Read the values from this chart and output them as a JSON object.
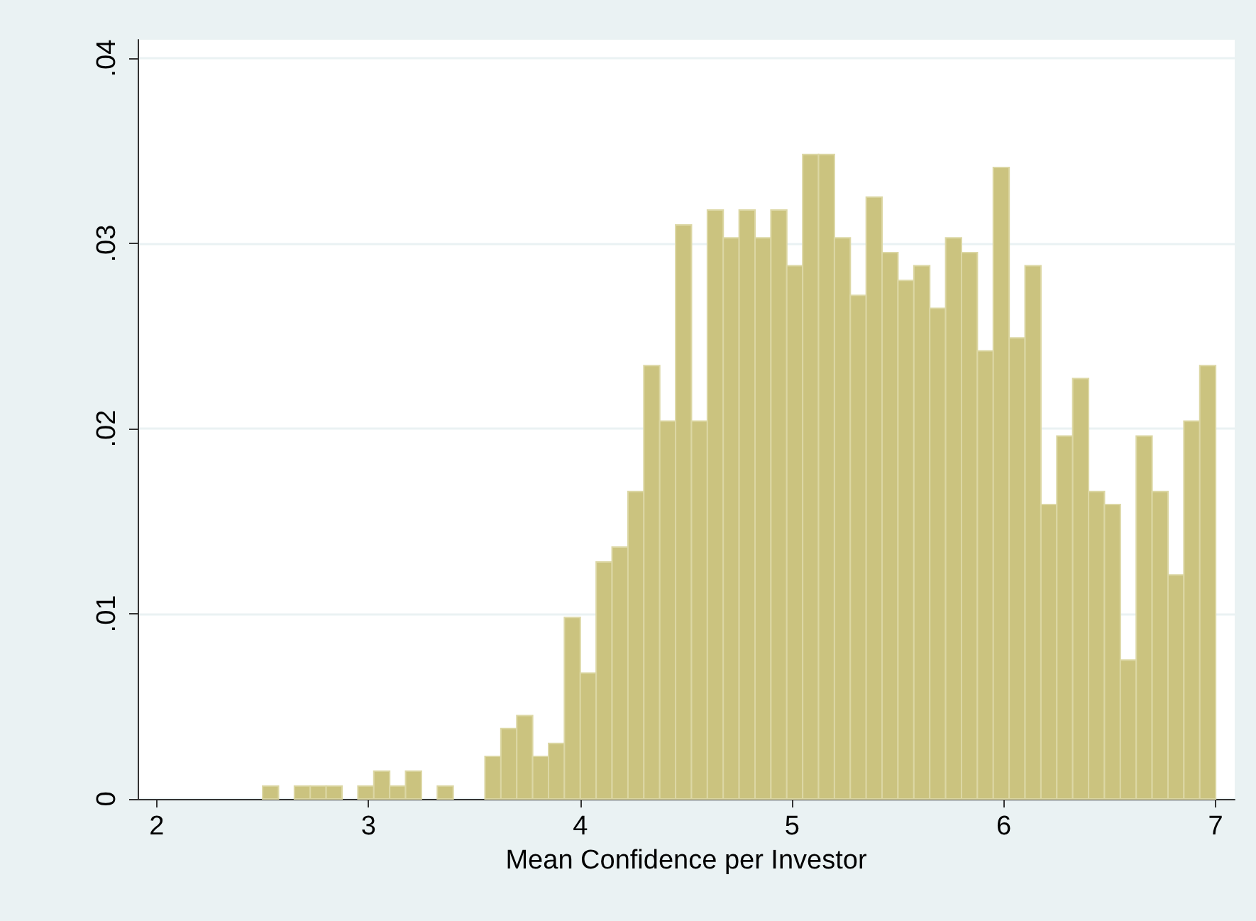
{
  "chart_data": {
    "type": "histogram",
    "xlabel": "Mean Confidence per Investor",
    "color": "#cbc37f",
    "bins": [
      2.5,
      2.575,
      2.65,
      2.725,
      2.8,
      2.875,
      2.95,
      3.025,
      3.1,
      3.175,
      3.25,
      3.325,
      3.4,
      3.475,
      3.55,
      3.625,
      3.7,
      3.775,
      3.85,
      3.925,
      4,
      4.075,
      4.15,
      4.225,
      4.3,
      4.375,
      4.45,
      4.525,
      4.6,
      4.675,
      4.75,
      4.825,
      4.9,
      4.975,
      5.05,
      5.125,
      5.2,
      5.275,
      5.35,
      5.425,
      5.5,
      5.575,
      5.65,
      5.725,
      5.8,
      5.875,
      5.95,
      6.025,
      6.1,
      6.175,
      6.25,
      6.325,
      6.4,
      6.475,
      6.55,
      6.625,
      6.7,
      6.775,
      6.85,
      6.925,
      7
    ],
    "values": [
      0.0007,
      0,
      0.0007,
      0.0007,
      0.0007,
      0,
      0.0007,
      0.0015,
      0.0007,
      0.0015,
      0,
      0.0007,
      0,
      0,
      0.0023,
      0.0038,
      0.0045,
      0.0023,
      0.003,
      0.0098,
      0.0068,
      0.0128,
      0.0136,
      0.0166,
      0.0234,
      0.0204,
      0.031,
      0.0204,
      0.0318,
      0.0303,
      0.0318,
      0.0303,
      0.0318,
      0.0288,
      0.0348,
      0.0348,
      0.0303,
      0.0272,
      0.0325,
      0.0295,
      0.028,
      0.0288,
      0.0265,
      0.0303,
      0.0295,
      0.0242,
      0.0341,
      0.0249,
      0.0288,
      0.0159,
      0.0196,
      0.0227,
      0.0166,
      0.0159,
      0.0075,
      0.0196,
      0.0166,
      0.0121,
      0.0204,
      0.0234
    ],
    "xlim": [
      1.91,
      7.09
    ],
    "xticks": [
      2,
      3,
      4,
      5,
      6,
      7
    ],
    "ylim": [
      0,
      0.041
    ],
    "yticks": [
      0,
      {
        "value": 0.01,
        "label": ".01"
      },
      {
        "value": 0.02,
        "label": ".02"
      },
      {
        "value": 0.03,
        "label": ".03"
      },
      {
        "value": 0.04,
        "label": ".04"
      }
    ],
    "grid": "y"
  }
}
